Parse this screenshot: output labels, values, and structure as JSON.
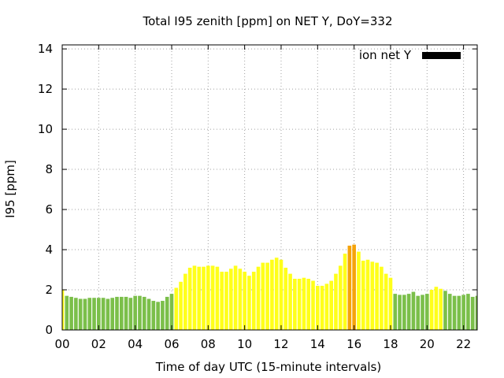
{
  "chart_data": {
    "type": "bar",
    "title": "Total I95 zenith [ppm] on NET Y, DoY=332",
    "xlabel": "Time of day UTC (15-minute intervals)",
    "ylabel": "I95 [ppm]",
    "xlim": [
      0,
      22.75
    ],
    "ylim": [
      0,
      14.2
    ],
    "xticks": [
      "00",
      "02",
      "04",
      "06",
      "08",
      "10",
      "12",
      "14",
      "16",
      "18",
      "20",
      "22"
    ],
    "yticks": [
      "0",
      "2",
      "4",
      "6",
      "8",
      "10",
      "12",
      "14"
    ],
    "grid": true,
    "legend": {
      "position": "top-right",
      "label": "ion net Y",
      "swatch_color": "#000000"
    },
    "colors": {
      "green": "#7bbf4a",
      "yellow": "#ffff1a",
      "orange": "#f5a30a"
    },
    "bar_step_hours": 0.25,
    "series": [
      {
        "values": [
          2.0,
          1.7,
          1.65,
          1.6,
          1.55,
          1.55,
          1.6,
          1.6,
          1.6,
          1.6,
          1.55,
          1.6,
          1.65,
          1.65,
          1.65,
          1.6,
          1.7,
          1.7,
          1.65,
          1.55,
          1.45,
          1.4,
          1.45,
          1.65,
          1.8,
          2.1,
          2.4,
          2.8,
          3.1,
          3.2,
          3.15,
          3.15,
          3.2,
          3.2,
          3.15,
          2.9,
          2.9,
          3.05,
          3.2,
          3.05,
          2.9,
          2.7,
          2.9,
          3.15,
          3.35,
          3.35,
          3.5,
          3.6,
          3.5,
          3.1,
          2.8,
          2.55,
          2.55,
          2.6,
          2.55,
          2.45,
          2.2,
          2.2,
          2.3,
          2.45,
          2.8,
          3.2,
          3.8,
          4.2,
          4.25,
          3.9,
          3.45,
          3.5,
          3.4,
          3.35,
          3.15,
          2.8,
          2.6,
          1.8,
          1.75,
          1.75,
          1.8,
          1.9,
          1.7,
          1.75,
          1.8,
          2.0,
          2.15,
          2.05,
          1.95,
          1.8,
          1.7,
          1.7,
          1.75,
          1.8,
          1.65,
          1.7,
          1.6
        ],
        "level": [
          "yellow",
          "green",
          "green",
          "green",
          "green",
          "green",
          "green",
          "green",
          "green",
          "green",
          "green",
          "green",
          "green",
          "green",
          "green",
          "green",
          "green",
          "green",
          "green",
          "green",
          "green",
          "green",
          "green",
          "green",
          "green",
          "yellow",
          "yellow",
          "yellow",
          "yellow",
          "yellow",
          "yellow",
          "yellow",
          "yellow",
          "yellow",
          "yellow",
          "yellow",
          "yellow",
          "yellow",
          "yellow",
          "yellow",
          "yellow",
          "yellow",
          "yellow",
          "yellow",
          "yellow",
          "yellow",
          "yellow",
          "yellow",
          "yellow",
          "yellow",
          "yellow",
          "yellow",
          "yellow",
          "yellow",
          "yellow",
          "yellow",
          "yellow",
          "yellow",
          "yellow",
          "yellow",
          "yellow",
          "yellow",
          "yellow",
          "orange",
          "orange",
          "yellow",
          "yellow",
          "yellow",
          "yellow",
          "yellow",
          "yellow",
          "yellow",
          "yellow",
          "green",
          "green",
          "green",
          "green",
          "green",
          "green",
          "green",
          "green",
          "yellow",
          "yellow",
          "yellow",
          "green",
          "green",
          "green",
          "green",
          "green",
          "green",
          "green",
          "green",
          "green"
        ]
      }
    ]
  }
}
